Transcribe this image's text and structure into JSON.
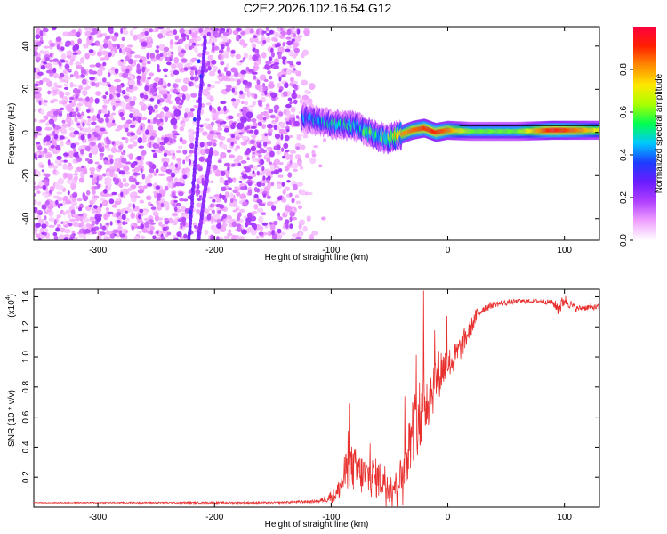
{
  "title": "C2E2.2026.102.16.54.G12",
  "chart_data": [
    {
      "type": "heatmap",
      "xlabel": "Height of straight line (km)",
      "ylabel": "Frequency (Hz)",
      "xlim": [
        -355,
        130
      ],
      "ylim": [
        -50,
        49
      ],
      "x_ticks": [
        -300,
        -200,
        -100,
        0,
        100
      ],
      "y_ticks": [
        -40,
        -20,
        0,
        20,
        40
      ],
      "colorbar": {
        "label": "Normalized spectral amplitude",
        "range": [
          0,
          1
        ],
        "ticks": [
          0.0,
          0.2,
          0.4,
          0.6,
          0.8
        ],
        "tick_labels": [
          "0.0",
          "0.2",
          "0.4",
          "0.6",
          "0.8"
        ],
        "colors": [
          "#ffffff",
          "#f0a0ff",
          "#b040ff",
          "#6a1cff",
          "#1d3cff",
          "#00c8ff",
          "#00ff50",
          "#aaff00",
          "#ffe800",
          "#ff8c00",
          "#ff2000",
          "#ff0040"
        ]
      },
      "features": [
        {
          "name": "noise",
          "x_range": [
            -355,
            -105
          ],
          "y_range": [
            -50,
            49
          ],
          "amplitude": 0.12
        },
        {
          "name": "streak-1",
          "x": [
            -222,
            -208
          ],
          "y": [
            -50,
            44
          ],
          "amplitude": 0.22
        },
        {
          "name": "streak-2",
          "x": [
            -214,
            -203
          ],
          "y": [
            -50,
            -8
          ],
          "amplitude": 0.2
        },
        {
          "name": "signal-track",
          "x": [
            -125,
            -100,
            -80,
            -60,
            -50,
            -40,
            -30,
            -20,
            -10,
            0,
            20,
            60,
            90,
            110,
            130
          ],
          "y": [
            7,
            4,
            3,
            -2,
            -3,
            -1,
            1,
            2,
            0,
            1,
            0.5,
            0.5,
            1,
            1,
            1
          ],
          "amplitude": [
            0.45,
            0.5,
            0.55,
            0.6,
            0.7,
            0.8,
            0.85,
            0.9,
            0.92,
            0.85,
            0.6,
            0.6,
            0.95,
            0.85,
            0.7
          ]
        }
      ]
    },
    {
      "type": "line",
      "xlabel": "Height of straight line (km)",
      "ylabel": "SNR (10 * v/v)",
      "y_multiplier": "(x10",
      "y_multiplier_exp": "4",
      "xlim": [
        -355,
        130
      ],
      "ylim": [
        0,
        1.45
      ],
      "x_ticks": [
        -300,
        -200,
        -100,
        0,
        100
      ],
      "y_ticks": [
        0.2,
        0.4,
        0.6,
        0.8,
        1.0,
        1.2,
        1.4
      ],
      "y_tick_labels": [
        "0.2",
        "0.4",
        "0.6",
        "0.8",
        "1.0",
        "1.2",
        "1.4"
      ],
      "series": [
        {
          "color": "#e8302e",
          "x": [
            -355,
            -300,
            -250,
            -200,
            -150,
            -110,
            -95,
            -85,
            -75,
            -65,
            -55,
            -45,
            -40,
            -35,
            -30,
            -25,
            -20,
            -15,
            -10,
            -5,
            0,
            5,
            10,
            15,
            20,
            25,
            30,
            40,
            50,
            60,
            70,
            80,
            90,
            95,
            100,
            110,
            120,
            130
          ],
          "y": [
            0.03,
            0.03,
            0.03,
            0.03,
            0.03,
            0.04,
            0.09,
            0.28,
            0.22,
            0.2,
            0.18,
            0.14,
            0.22,
            0.35,
            0.52,
            0.6,
            0.7,
            0.76,
            0.86,
            0.92,
            0.96,
            0.98,
            1.05,
            1.12,
            1.2,
            1.28,
            1.32,
            1.35,
            1.36,
            1.37,
            1.37,
            1.37,
            1.36,
            1.32,
            1.38,
            1.32,
            1.33,
            1.33
          ],
          "noise": [
            0.003,
            0.004,
            0.005,
            0.006,
            0.006,
            0.01,
            0.06,
            0.16,
            0.14,
            0.14,
            0.12,
            0.1,
            0.12,
            0.18,
            0.22,
            0.24,
            0.24,
            0.2,
            0.18,
            0.15,
            0.1,
            0.1,
            0.09,
            0.08,
            0.06,
            0.05,
            0.03,
            0.02,
            0.02,
            0.015,
            0.015,
            0.015,
            0.02,
            0.05,
            0.04,
            0.02,
            0.02,
            0.02
          ]
        }
      ]
    }
  ]
}
